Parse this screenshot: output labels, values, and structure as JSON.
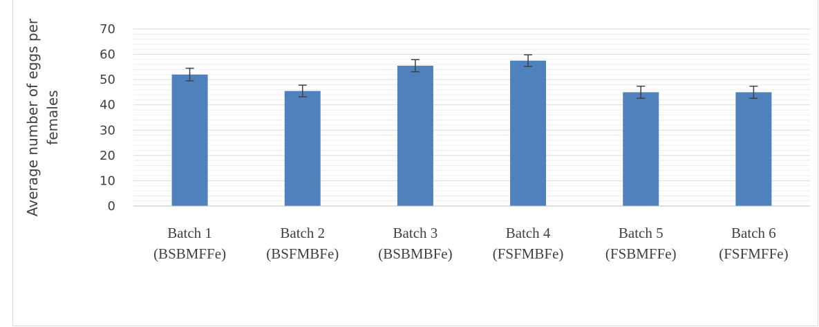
{
  "chart_data": {
    "type": "bar",
    "title": "",
    "ylabel": [
      "Average number of eggs per",
      "females"
    ],
    "xlabel": "",
    "ylim": [
      0,
      70
    ],
    "yticks": [
      0,
      10,
      20,
      30,
      40,
      50,
      60,
      70
    ],
    "grid": true,
    "categories": [
      [
        "Batch 1",
        "(BSBMFFe)"
      ],
      [
        "Batch 2",
        "(BSFMBFe)"
      ],
      [
        "Batch 3",
        "(BSBMBFe)"
      ],
      [
        "Batch 4",
        "(FSFMBFe)"
      ],
      [
        "Batch 5",
        "(FSBMFFe)"
      ],
      [
        "Batch 6",
        "(FSFMFFe)"
      ]
    ],
    "values": [
      52,
      45.5,
      55.5,
      57.5,
      45,
      45
    ],
    "errors": [
      2.5,
      2.3,
      2.4,
      2.3,
      2.4,
      2.4
    ],
    "bar_color": "#4f81bd",
    "error_color": "#404040"
  }
}
